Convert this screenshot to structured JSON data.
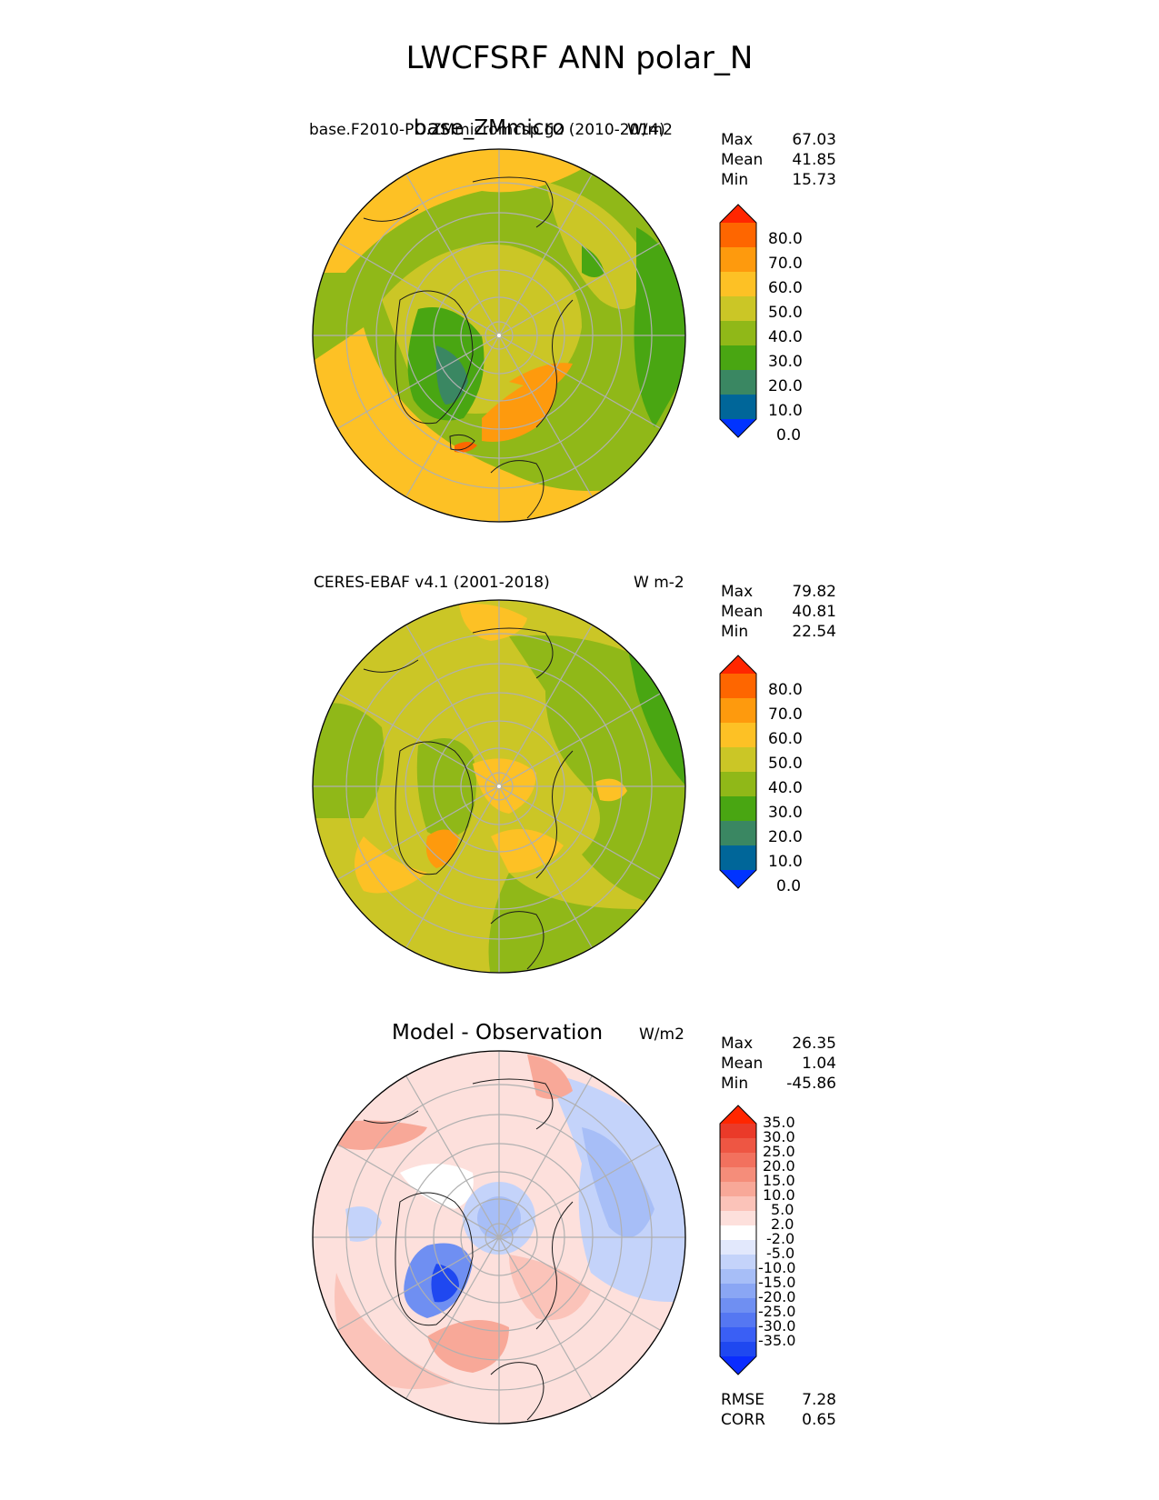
{
  "title": "LWCFSRF ANN polar_N",
  "panels": [
    {
      "title_left": "base.F2010-PD.ZMmicromcsp.g2 (2010-2014)",
      "title_center": "base_ZMmicro",
      "units": "W/m2",
      "stats": [
        {
          "label": "Max",
          "value": "67.03"
        },
        {
          "label": "Mean",
          "value": "41.85"
        },
        {
          "label": "Min",
          "value": "15.73"
        }
      ],
      "colorbar_labels": [
        "80.0",
        "70.0",
        "60.0",
        "50.0",
        "40.0",
        "30.0",
        "20.0",
        "10.0",
        "0.0"
      ]
    },
    {
      "title_left": "CERES-EBAF v4.1 (2001-2018)",
      "units": "W m-2",
      "stats": [
        {
          "label": "Max",
          "value": "79.82"
        },
        {
          "label": "Mean",
          "value": "40.81"
        },
        {
          "label": "Min",
          "value": "22.54"
        }
      ],
      "colorbar_labels": [
        "80.0",
        "70.0",
        "60.0",
        "50.0",
        "40.0",
        "30.0",
        "20.0",
        "10.0",
        "0.0"
      ]
    },
    {
      "title_center": "Model - Observation",
      "units": "W/m2",
      "stats": [
        {
          "label": "Max",
          "value": "26.35"
        },
        {
          "label": "Mean",
          "value": "1.04"
        },
        {
          "label": "Min",
          "value": "-45.86"
        }
      ],
      "colorbar_labels": [
        "35.0",
        "30.0",
        "25.0",
        "20.0",
        "15.0",
        "10.0",
        "5.0",
        "2.0",
        "-2.0",
        "-5.0",
        "-10.0",
        "-15.0",
        "-20.0",
        "-25.0",
        "-30.0",
        "-35.0"
      ],
      "metrics": [
        {
          "label": "RMSE",
          "value": "7.28"
        },
        {
          "label": "CORR",
          "value": "0.65"
        }
      ]
    }
  ],
  "colors": {
    "seq_levels": [
      "#0033ff",
      "#006699",
      "#3a8762",
      "#49a612",
      "#90b818",
      "#cbc626",
      "#fdc125",
      "#fe9a0d",
      "#fe6600",
      "#ff2600"
    ],
    "diff_levels": [
      "#0a2cff",
      "#1f48f0",
      "#3a5ff5",
      "#5577f2",
      "#6f8ff2",
      "#8aa6f4",
      "#a7bef7",
      "#c4d3fa",
      "#e2e8fc",
      "#ffffff",
      "#fde0dc",
      "#fbc3b9",
      "#f8a898",
      "#f58d7a",
      "#f2715e",
      "#ee5643",
      "#ea3a29",
      "#ff2600"
    ],
    "coastline": "#1a1a1a",
    "grid": "#b0b0b0"
  }
}
